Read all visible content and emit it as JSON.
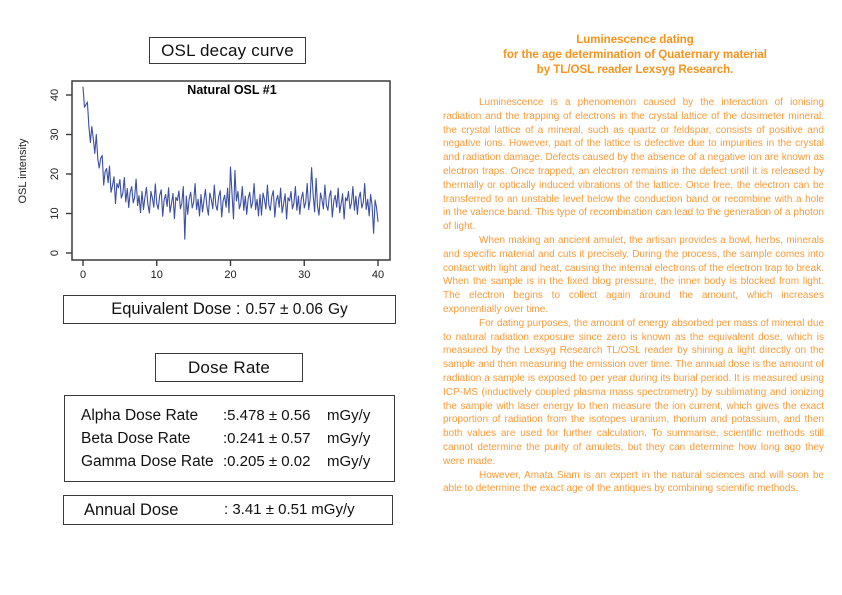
{
  "left_panel": {
    "decay_title": "OSL decay curve",
    "equivalent_dose": {
      "label": "Equivalent Dose :",
      "value": "0.57 ± 0.06",
      "unit": "Gy"
    },
    "dose_rate_title": "Dose Rate",
    "dose_rates": [
      {
        "label": "Alpha Dose Rate",
        "value": ":5.478 ± 0.56",
        "unit": "mGy/y"
      },
      {
        "label": "Beta Dose Rate",
        "value": ":0.241 ± 0.57",
        "unit": "mGy/y"
      },
      {
        "label": "Gamma Dose Rate",
        "value": ":0.205 ± 0.02",
        "unit": "mGy/y"
      }
    ],
    "annual_dose": {
      "label": "Annual Dose",
      "value": ": 3.41 ± 0.51",
      "unit": "mGy/y"
    }
  },
  "chart_data": {
    "type": "line",
    "title": "Natural OSL #1",
    "xlabel": "",
    "ylabel": "OSL intensity",
    "xlim": [
      0,
      40
    ],
    "ylim": [
      0,
      44
    ],
    "x_ticks": [
      0,
      10,
      20,
      30,
      40
    ],
    "y_ticks": [
      0,
      10,
      20,
      30,
      40
    ],
    "grid": false,
    "legend": "none",
    "line_color": "#3b4fa5",
    "axis_color": "#3a3a3a",
    "x_start": 0,
    "x_step": 0.2,
    "y": [
      42.0,
      36.9,
      37.6,
      38.2,
      32.0,
      28.0,
      32.0,
      28.9,
      25.2,
      30.0,
      23.8,
      21.5,
      24.0,
      24.7,
      17.2,
      20.6,
      21.4,
      17.8,
      22.0,
      15.4,
      17.1,
      19.3,
      12.5,
      17.6,
      16.5,
      18.6,
      13.9,
      15.1,
      19.1,
      12.9,
      16.3,
      11.5,
      15.4,
      16.8,
      12.7,
      14.0,
      18.7,
      12.0,
      14.5,
      10.2,
      15.6,
      11.0,
      14.0,
      16.6,
      12.3,
      10.1,
      15.6,
      14.0,
      11.6,
      17.5,
      12.4,
      11.1,
      14.6,
      16.0,
      9.3,
      13.4,
      14.8,
      11.8,
      16.5,
      10.3,
      12.5,
      15.1,
      8.7,
      14.1,
      13.3,
      15.7,
      11.2,
      12.6,
      16.8,
      3.5,
      14.4,
      9.8,
      13.8,
      15.4,
      11.4,
      12.8,
      17.6,
      11.0,
      13.6,
      9.4,
      14.8,
      10.4,
      13.4,
      16.1,
      11.8,
      9.6,
      15.2,
      13.6,
      11.2,
      17.2,
      12.1,
      10.8,
      14.3,
      15.8,
      9.1,
      13.2,
      14.6,
      11.6,
      16.4,
      10.2,
      21.8,
      15.0,
      8.6,
      20.9,
      13.2,
      15.6,
      11.2,
      12.6,
      16.8,
      10.8,
      14.4,
      9.8,
      13.8,
      15.4,
      11.4,
      12.8,
      17.6,
      11.0,
      13.6,
      9.4,
      14.8,
      9.6,
      15.2,
      13.6,
      11.2,
      17.2,
      12.1,
      10.8,
      14.3,
      15.8,
      9.1,
      13.2,
      14.6,
      11.6,
      16.4,
      10.2,
      12.4,
      15.0,
      8.6,
      14.0,
      13.2,
      15.6,
      11.2,
      12.6,
      16.8,
      10.8,
      14.4,
      9.8,
      13.8,
      15.4,
      11.4,
      12.8,
      17.6,
      11.0,
      13.6,
      21.6,
      14.8,
      10.4,
      18.9,
      11.8,
      9.6,
      15.2,
      13.6,
      11.2,
      17.2,
      12.1,
      10.8,
      14.3,
      15.8,
      9.1,
      13.2,
      14.6,
      11.6,
      16.4,
      10.2,
      12.4,
      15.0,
      8.6,
      14.0,
      13.2,
      15.6,
      11.2,
      12.6,
      16.8,
      10.8,
      14.4,
      9.8,
      13.8,
      15.4,
      11.4,
      12.8,
      17.6,
      11.0,
      13.6,
      9.4,
      14.8,
      12.0,
      5.0,
      13.4,
      11.6,
      8.0
    ]
  },
  "right_panel": {
    "heading_color": "#f7941e",
    "body_color": "#f89c3a",
    "heading_lines": [
      "Luminescence dating",
      "for the age determination of Quaternary material",
      "by TL/OSL reader Lexsyg Research."
    ],
    "paragraphs": [
      "Luminescence is a phenomenon caused by the interaction of ionising radiation and the trapping of electrons in the crystal lattice of the dosimeter mineral. the crystal lattice of a mineral, such as quartz or feldspar, consists of positive and negative ions. However, part of the lattice is defective due to impurities in the crystal and radiation damage. Defects caused by the absence of a negative ion are known as electron traps. Once trapped, an electron remains in the defect until it is released by thermally or optically induced vibrations of the lattice. Once free, the electron can be transferred to an unstable level below the conduction band or recombine with a hole in the valence band. This type of recombination can lead to the generation of a photon of light.",
      "When making an ancient amulet, the artisan provides a bowl, herbs, minerals and specific material and cuts it precisely. During the process, the sample comes into contact with light and heat, causing the internal electrons of the electron trap to break. When the sample is in the fixed blog pressure, the inner body is blocked from light. The electron begins to collect again around the amount, which increases exponentially over time.",
      "For dating purposes, the amount of energy absorbed per mass of mineral due to natural radiation exposure since zero is known as the equivalent dose, which is measured by the Lexsyg Research TL/OSL reader by shining a light directly on the sample and then measuring the emission over time. The annual dose is the amount of radiation a sample is exposed to per year during its burial period. It is measured using ICP-MS (inductively coupled plasma mass spectrometry) by sublimating and ionizing the sample with laser energy to then measure the ion current, which gives the exact proportion of radiation from the isotopes uranium, thorium and potassium, and then both values are used for further calculation. To summarise, scientific methods still cannot determine the purity of amulets, but they can determine how long ago they were made.",
      "However, Amata Siam is an expert in the natural sciences and will soon be able to determine the exact age of the antiques by combining scientific methods."
    ]
  }
}
